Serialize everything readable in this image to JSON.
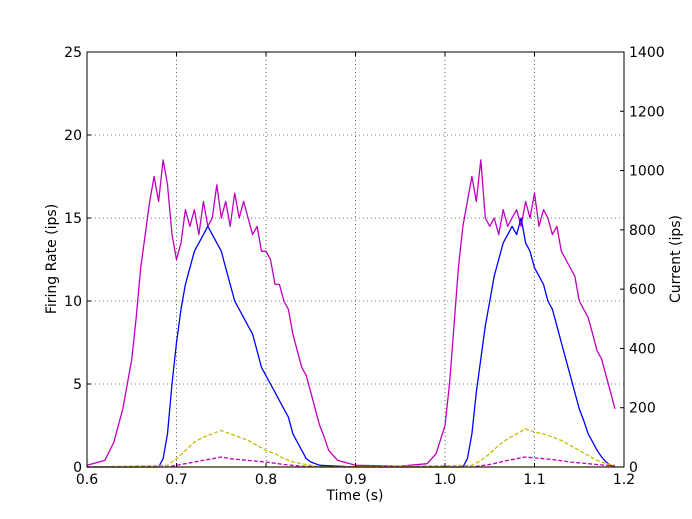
{
  "chart_data": {
    "type": "line",
    "title": "",
    "xlabel": "Time (s)",
    "ylabel": "Firing Rate (ips)",
    "y2label": "Current (ips)",
    "xlim": [
      0.6,
      1.2
    ],
    "ylim": [
      0,
      25
    ],
    "y2lim": [
      0,
      1400
    ],
    "xticks": [
      "0.6",
      "0.7",
      "0.8",
      "0.9",
      "1.0",
      "1.1",
      "1.2"
    ],
    "yticks": [
      "0",
      "5",
      "10",
      "15",
      "20",
      "25"
    ],
    "y2ticks": [
      "0",
      "200",
      "400",
      "600",
      "800",
      "1000",
      "1200",
      "1400"
    ],
    "grid": true,
    "legend": "none",
    "colors": {
      "magenta": "#bf00bf",
      "blue": "#0000ff",
      "olive": "#bfbf00",
      "dashed_magenta": "#bf00bf",
      "baseline": "#bfbf00"
    },
    "series": [
      {
        "style": "solid",
        "color": "magenta",
        "axis": "left",
        "x": [
          0.6,
          0.62,
          0.63,
          0.64,
          0.65,
          0.655,
          0.66,
          0.665,
          0.67,
          0.675,
          0.68,
          0.685,
          0.69,
          0.695,
          0.7,
          0.705,
          0.71,
          0.715,
          0.72,
          0.725,
          0.73,
          0.735,
          0.74,
          0.745,
          0.75,
          0.755,
          0.76,
          0.765,
          0.77,
          0.775,
          0.78,
          0.785,
          0.79,
          0.795,
          0.8,
          0.805,
          0.81,
          0.815,
          0.82,
          0.825,
          0.83,
          0.835,
          0.84,
          0.845,
          0.85,
          0.855,
          0.86,
          0.865,
          0.87,
          0.88,
          0.9,
          0.95,
          0.98,
          0.99,
          1.0,
          1.005,
          1.01,
          1.015,
          1.02,
          1.025,
          1.03,
          1.035,
          1.04,
          1.045,
          1.05,
          1.055,
          1.06,
          1.065,
          1.07,
          1.075,
          1.08,
          1.085,
          1.09,
          1.095,
          1.1,
          1.105,
          1.11,
          1.115,
          1.12,
          1.125,
          1.13,
          1.135,
          1.14,
          1.145,
          1.15,
          1.155,
          1.16,
          1.165,
          1.17,
          1.175,
          1.18,
          1.185,
          1.19
        ],
        "y": [
          0.1,
          0.4,
          1.5,
          3.5,
          6.5,
          9.0,
          12.0,
          14.0,
          16.0,
          17.5,
          16.0,
          18.5,
          17.0,
          14.0,
          12.5,
          13.5,
          15.5,
          14.5,
          15.5,
          14.0,
          16.0,
          14.5,
          15.0,
          17.0,
          15.0,
          16.0,
          14.5,
          16.5,
          15.0,
          16.0,
          15.0,
          14.0,
          14.5,
          13.0,
          13.0,
          12.5,
          11.0,
          11.0,
          10.0,
          9.5,
          8.0,
          7.0,
          6.0,
          5.5,
          4.5,
          3.5,
          2.5,
          1.8,
          1.0,
          0.4,
          0.1,
          0.05,
          0.2,
          0.8,
          2.5,
          5.0,
          8.5,
          12.0,
          14.5,
          16.0,
          17.5,
          16.0,
          18.5,
          15.0,
          14.5,
          15.0,
          14.0,
          15.5,
          14.5,
          15.0,
          15.5,
          14.5,
          16.0,
          15.0,
          16.5,
          14.5,
          15.5,
          15.0,
          14.0,
          14.5,
          13.0,
          12.5,
          12.0,
          11.5,
          10.0,
          9.5,
          9.0,
          8.0,
          7.0,
          6.5,
          5.5,
          4.5,
          3.5
        ]
      },
      {
        "style": "solid",
        "color": "blue",
        "axis": "left",
        "x": [
          0.6,
          0.68,
          0.685,
          0.69,
          0.695,
          0.7,
          0.705,
          0.71,
          0.715,
          0.72,
          0.725,
          0.73,
          0.735,
          0.74,
          0.745,
          0.75,
          0.755,
          0.76,
          0.765,
          0.77,
          0.775,
          0.78,
          0.785,
          0.79,
          0.795,
          0.8,
          0.805,
          0.81,
          0.815,
          0.82,
          0.825,
          0.83,
          0.835,
          0.84,
          0.845,
          0.85,
          0.86,
          0.9,
          1.02,
          1.025,
          1.03,
          1.035,
          1.04,
          1.045,
          1.05,
          1.055,
          1.06,
          1.065,
          1.07,
          1.075,
          1.08,
          1.085,
          1.09,
          1.095,
          1.1,
          1.105,
          1.11,
          1.115,
          1.12,
          1.125,
          1.13,
          1.135,
          1.14,
          1.145,
          1.15,
          1.155,
          1.16,
          1.165,
          1.17,
          1.175,
          1.18,
          1.185,
          1.19
        ],
        "y": [
          0.0,
          0.0,
          0.5,
          2.0,
          5.0,
          7.5,
          9.5,
          11.0,
          12.0,
          13.0,
          13.5,
          14.0,
          14.5,
          14.0,
          13.5,
          13.0,
          12.0,
          11.0,
          10.0,
          9.5,
          9.0,
          8.5,
          8.0,
          7.0,
          6.0,
          5.5,
          5.0,
          4.5,
          4.0,
          3.5,
          3.0,
          2.0,
          1.5,
          1.0,
          0.5,
          0.3,
          0.1,
          0.0,
          0.0,
          0.5,
          2.0,
          4.5,
          6.5,
          8.5,
          10.0,
          11.5,
          12.5,
          13.5,
          14.0,
          14.5,
          14.0,
          15.0,
          13.5,
          13.0,
          12.0,
          11.5,
          11.0,
          10.0,
          9.5,
          8.5,
          7.5,
          6.5,
          5.5,
          4.5,
          3.5,
          2.8,
          2.0,
          1.5,
          1.0,
          0.6,
          0.3,
          0.1,
          0.0
        ]
      },
      {
        "style": "dashed",
        "color": "olive",
        "axis": "left",
        "x": [
          0.6,
          0.69,
          0.7,
          0.71,
          0.72,
          0.73,
          0.74,
          0.75,
          0.76,
          0.77,
          0.78,
          0.79,
          0.8,
          0.81,
          0.82,
          0.83,
          0.84,
          0.85,
          0.86,
          1.03,
          1.04,
          1.05,
          1.06,
          1.07,
          1.08,
          1.09,
          1.1,
          1.11,
          1.12,
          1.13,
          1.14,
          1.15,
          1.16,
          1.17,
          1.18,
          1.19
        ],
        "y": [
          0.0,
          0.1,
          0.5,
          1.0,
          1.5,
          1.8,
          2.0,
          2.2,
          2.0,
          1.8,
          1.6,
          1.3,
          1.0,
          0.8,
          0.5,
          0.3,
          0.2,
          0.1,
          0.0,
          0.1,
          0.4,
          0.8,
          1.3,
          1.7,
          2.0,
          2.3,
          2.1,
          2.0,
          1.8,
          1.6,
          1.3,
          1.0,
          0.7,
          0.4,
          0.2,
          0.1
        ]
      },
      {
        "style": "dashed",
        "color": "dashed_magenta",
        "axis": "left",
        "x": [
          0.6,
          0.69,
          0.7,
          0.72,
          0.74,
          0.75,
          0.76,
          0.78,
          0.8,
          0.82,
          0.84,
          0.86,
          1.03,
          1.05,
          1.07,
          1.08,
          1.09,
          1.1,
          1.12,
          1.14,
          1.16,
          1.18,
          1.19
        ],
        "y": [
          0.0,
          0.0,
          0.1,
          0.3,
          0.5,
          0.6,
          0.5,
          0.4,
          0.3,
          0.15,
          0.05,
          0.0,
          0.0,
          0.15,
          0.4,
          0.5,
          0.6,
          0.55,
          0.45,
          0.3,
          0.2,
          0.1,
          0.05
        ]
      },
      {
        "style": "solid",
        "color": "baseline",
        "axis": "left",
        "x": [
          0.6,
          1.2
        ],
        "y": [
          0.0,
          0.0
        ]
      }
    ]
  }
}
